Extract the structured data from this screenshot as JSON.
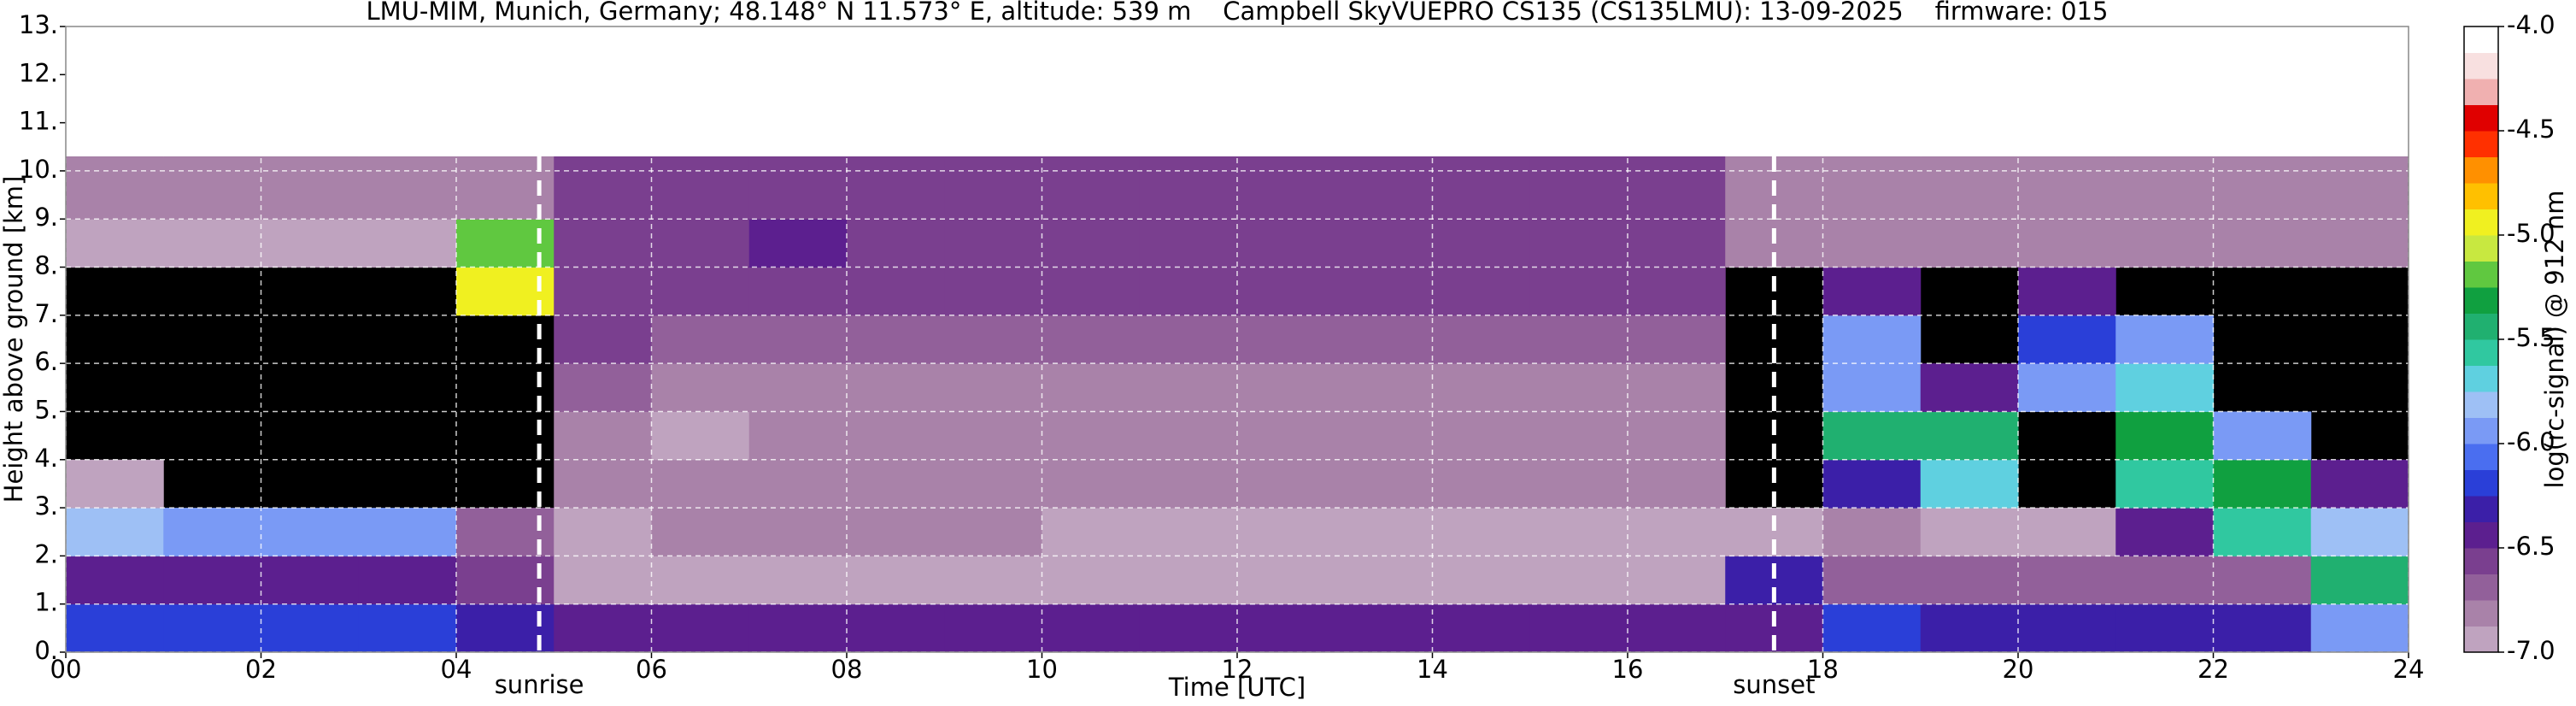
{
  "chart_data": {
    "type": "heatmap",
    "title": "LMU-MIM, Munich, Germany; 48.148° N 11.573° E, altitude: 539 m    Campbell SkyVUEPRO CS135 (CS135LMU): 13-09-2025    firmware: 015",
    "xlabel": "Time [UTC]",
    "ylabel": "Height above ground [km]",
    "colorbar_label": "log(rc-signal) @ 912 nm",
    "xlim": [
      0,
      24
    ],
    "ylim": [
      0,
      13
    ],
    "xticks": [
      {
        "value": 0,
        "label": "00"
      },
      {
        "value": 2,
        "label": "02"
      },
      {
        "value": 4,
        "label": "04"
      },
      {
        "value": 6,
        "label": "06"
      },
      {
        "value": 8,
        "label": "08"
      },
      {
        "value": 10,
        "label": "10"
      },
      {
        "value": 12,
        "label": "12"
      },
      {
        "value": 14,
        "label": "14"
      },
      {
        "value": 16,
        "label": "16"
      },
      {
        "value": 18,
        "label": "18"
      },
      {
        "value": 20,
        "label": "20"
      },
      {
        "value": 22,
        "label": "22"
      },
      {
        "value": 24,
        "label": "24"
      }
    ],
    "yticks": [
      {
        "value": 0,
        "label": "0."
      },
      {
        "value": 1,
        "label": "1."
      },
      {
        "value": 2,
        "label": "2."
      },
      {
        "value": 3,
        "label": "3."
      },
      {
        "value": 4,
        "label": "4."
      },
      {
        "value": 5,
        "label": "5."
      },
      {
        "value": 6,
        "label": "6."
      },
      {
        "value": 7,
        "label": "7."
      },
      {
        "value": 8,
        "label": "8."
      },
      {
        "value": 9,
        "label": "9."
      },
      {
        "value": 10,
        "label": "10."
      },
      {
        "value": 11,
        "label": "11."
      },
      {
        "value": 12,
        "label": "12."
      },
      {
        "value": 13,
        "label": "13."
      }
    ],
    "grid": true,
    "x_edges": [
      0,
      1,
      2,
      3,
      4,
      5,
      6,
      7,
      8,
      9,
      10,
      11,
      12,
      13,
      14,
      15,
      16,
      17,
      18,
      19,
      20,
      21,
      22,
      23,
      24
    ],
    "y_edges": [
      0,
      1,
      2,
      3,
      4,
      5,
      6,
      7,
      8,
      9,
      10.3
    ],
    "z": [
      [
        -6.2,
        -6.2,
        -6.2,
        -6.2,
        -6.3,
        -6.4,
        -6.5,
        -6.5,
        -6.5,
        -6.5,
        -6.4,
        -6.5,
        -6.5,
        -6.5,
        -6.5,
        -6.5,
        -6.5,
        -6.4,
        -6.2,
        -6.3,
        -6.3,
        -6.3,
        -6.3,
        -6.0
      ],
      [
        -6.4,
        -6.4,
        -6.5,
        -6.5,
        -6.6,
        -6.9,
        -6.9,
        -6.9,
        -6.9,
        -6.9,
        -6.9,
        -6.9,
        -6.9,
        -6.9,
        -6.9,
        -6.9,
        -6.9,
        -6.3,
        -6.7,
        -6.7,
        -6.7,
        -6.7,
        -6.7,
        -5.5
      ],
      [
        -5.8,
        -5.9,
        -5.9,
        -5.9,
        -6.7,
        -6.9,
        -6.8,
        -6.8,
        -6.8,
        -6.8,
        -6.9,
        -6.9,
        -6.9,
        -6.9,
        -6.9,
        -6.9,
        -6.9,
        -6.9,
        -6.8,
        -6.9,
        -6.9,
        -6.5,
        -5.6,
        -5.8
      ],
      [
        -6.9,
        null,
        null,
        null,
        null,
        -6.8,
        -6.8,
        -6.8,
        -6.8,
        -6.8,
        -6.8,
        -6.8,
        -6.8,
        -6.8,
        -6.8,
        -6.8,
        -6.8,
        null,
        -6.3,
        -5.7,
        null,
        -5.6,
        -5.3,
        -6.4
      ],
      [
        null,
        null,
        null,
        null,
        null,
        -6.8,
        -6.9,
        -6.8,
        -6.8,
        -6.8,
        -6.8,
        -6.8,
        -6.8,
        -6.8,
        -6.8,
        -6.8,
        -6.8,
        null,
        -5.4,
        -5.5,
        null,
        -5.3,
        -6.0,
        null
      ],
      [
        null,
        null,
        null,
        null,
        null,
        -6.7,
        -6.8,
        -6.8,
        -6.8,
        -6.8,
        -6.8,
        -6.8,
        -6.8,
        -6.8,
        -6.8,
        -6.8,
        -6.8,
        null,
        -6.0,
        -6.5,
        -5.9,
        -5.7,
        null,
        null
      ],
      [
        null,
        null,
        null,
        null,
        null,
        -6.6,
        -6.7,
        -6.7,
        -6.7,
        -6.7,
        -6.7,
        -6.7,
        -6.7,
        -6.7,
        -6.7,
        -6.7,
        -6.7,
        null,
        -5.9,
        null,
        -6.2,
        -6.0,
        null,
        null
      ],
      [
        null,
        null,
        null,
        null,
        -5.0,
        -6.6,
        -6.6,
        -6.6,
        -6.6,
        -6.6,
        -6.6,
        -6.6,
        -6.6,
        -6.6,
        -6.6,
        -6.6,
        -6.6,
        null,
        -6.4,
        null,
        -6.5,
        null,
        null,
        null
      ],
      [
        -6.9,
        -6.9,
        -6.9,
        -6.9,
        -5.2,
        -6.6,
        -6.6,
        -6.5,
        -6.6,
        -6.6,
        -6.6,
        -6.6,
        -6.6,
        -6.6,
        -6.6,
        -6.6,
        -6.6,
        -6.8,
        -6.8,
        -6.8,
        -6.8,
        -6.8,
        -6.8,
        -6.8
      ],
      [
        -6.8,
        -6.8,
        -6.8,
        -6.8,
        -6.8,
        -6.6,
        -6.6,
        -6.6,
        -6.6,
        -6.6,
        -6.6,
        -6.6,
        -6.6,
        -6.6,
        -6.6,
        -6.6,
        -6.6,
        -6.8,
        -6.8,
        -6.8,
        -6.8,
        -6.8,
        -6.8,
        -6.8
      ]
    ],
    "clim": [
      -7,
      -4
    ],
    "cticks": [
      {
        "value": -7,
        "label": "-7.0"
      },
      {
        "value": -6.5,
        "label": "-6.5"
      },
      {
        "value": -6,
        "label": "-6.0"
      },
      {
        "value": -5.5,
        "label": "-5.5"
      },
      {
        "value": -5,
        "label": "-5.0"
      },
      {
        "value": -4.5,
        "label": "-4.5"
      },
      {
        "value": -4,
        "label": "-4.0"
      }
    ],
    "colors": [
      "#bfa3bf",
      "#a982a9",
      "#92609a",
      "#7a3f8f",
      "#5c1f8f",
      "#3b1fa8",
      "#2a3fd8",
      "#4a6ef0",
      "#7a9af5",
      "#9ec0f5",
      "#5fd0e0",
      "#30c8a0",
      "#20b070",
      "#10a040",
      "#60c840",
      "#c8e840",
      "#f0f020",
      "#ffc000",
      "#ff9000",
      "#ff3000",
      "#e00000",
      "#f0b0b0",
      "#f8e0e0",
      "#ffffff"
    ],
    "annotations": [
      {
        "text": "sunrise",
        "x": 4.85
      },
      {
        "text": "sunset",
        "x": 17.5
      }
    ]
  }
}
